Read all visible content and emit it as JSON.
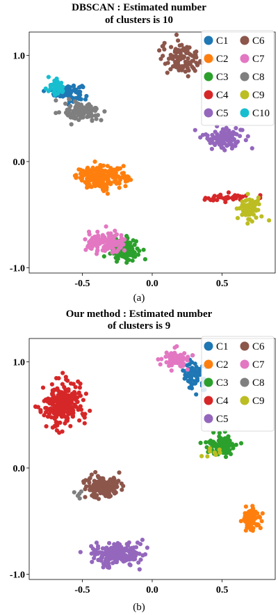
{
  "figure": {
    "caption_a": "(a)",
    "caption_b": "(b)"
  },
  "chart_data": [
    {
      "type": "scatter",
      "title": "DBSCAN : Estimated number",
      "subtitle": "of clusters is 10",
      "xlabel": "",
      "ylabel": "",
      "xlim": [
        -0.88,
        0.88
      ],
      "ylim": [
        -1.05,
        1.22
      ],
      "xticks": [
        "-0.5",
        "0.0",
        "0.5"
      ],
      "xtick_values": [
        -0.5,
        0.0,
        0.5
      ],
      "yticks": [
        "1.0",
        "0.0",
        "-1.0"
      ],
      "ytick_values": [
        1.0,
        0.0,
        -1.0
      ],
      "grid": false,
      "legend": "top-right",
      "series": [
        {
          "name": "C1",
          "color": "#1f77b4",
          "center": [
            -0.6,
            0.65
          ],
          "spread": [
            0.05,
            0.04
          ],
          "count": 90
        },
        {
          "name": "C2",
          "color": "#ff7f0e",
          "center": [
            -0.36,
            -0.15
          ],
          "spread": [
            0.09,
            0.05
          ],
          "count": 200
        },
        {
          "name": "C3",
          "color": "#2ca02c",
          "center": [
            -0.2,
            -0.83
          ],
          "spread": [
            0.05,
            0.05
          ],
          "count": 140
        },
        {
          "name": "C4",
          "color": "#d62728",
          "center": [
            0.53,
            -0.34
          ],
          "spread": [
            0.09,
            0.02
          ],
          "count": 35
        },
        {
          "name": "C5",
          "color": "#9467bd",
          "center": [
            0.51,
            0.23
          ],
          "spread": [
            0.07,
            0.05
          ],
          "count": 110
        },
        {
          "name": "C6",
          "color": "#8c564b",
          "center": [
            0.22,
            0.97
          ],
          "spread": [
            0.08,
            0.08
          ],
          "count": 110
        },
        {
          "name": "C7",
          "color": "#e377c2",
          "center": [
            -0.33,
            -0.77
          ],
          "spread": [
            0.07,
            0.05
          ],
          "count": 120
        },
        {
          "name": "C8",
          "color": "#7f7f7f",
          "center": [
            -0.5,
            0.47
          ],
          "spread": [
            0.06,
            0.04
          ],
          "count": 110
        },
        {
          "name": "C9",
          "color": "#bcbd22",
          "center": [
            0.7,
            -0.45
          ],
          "spread": [
            0.04,
            0.06
          ],
          "count": 70
        },
        {
          "name": "C10",
          "color": "#17becf",
          "center": [
            -0.69,
            0.7
          ],
          "spread": [
            0.03,
            0.04
          ],
          "count": 35
        }
      ]
    },
    {
      "type": "scatter",
      "title": "Our method : Estimated number",
      "subtitle": "of clusters is 9",
      "xlabel": "",
      "ylabel": "",
      "xlim": [
        -0.88,
        0.88
      ],
      "ylim": [
        -1.05,
        1.22
      ],
      "xticks": [
        "-0.5",
        "0.0",
        "0.5"
      ],
      "xtick_values": [
        -0.5,
        0.0,
        0.5
      ],
      "yticks": [
        "1.0",
        "0.0",
        "-1.0"
      ],
      "ytick_values": [
        1.0,
        0.0,
        -1.0
      ],
      "grid": false,
      "legend": "top-right",
      "series": [
        {
          "name": "C1",
          "color": "#1f77b4",
          "center": [
            0.3,
            0.88
          ],
          "spread": [
            0.04,
            0.07
          ],
          "count": 70
        },
        {
          "name": "C2",
          "color": "#ff7f0e",
          "center": [
            0.71,
            -0.48
          ],
          "spread": [
            0.03,
            0.05
          ],
          "count": 90
        },
        {
          "name": "C3",
          "color": "#2ca02c",
          "center": [
            0.5,
            0.22
          ],
          "spread": [
            0.05,
            0.05
          ],
          "count": 100
        },
        {
          "name": "C4",
          "color": "#d62728",
          "center": [
            -0.64,
            0.6
          ],
          "spread": [
            0.07,
            0.1
          ],
          "count": 250
        },
        {
          "name": "C5",
          "color": "#9467bd",
          "center": [
            -0.25,
            -0.81
          ],
          "spread": [
            0.09,
            0.05
          ],
          "count": 200
        },
        {
          "name": "C6",
          "color": "#8c564b",
          "center": [
            -0.37,
            -0.17
          ],
          "spread": [
            0.06,
            0.05
          ],
          "count": 150
        },
        {
          "name": "C7",
          "color": "#e377c2",
          "center": [
            0.17,
            1.03
          ],
          "spread": [
            0.05,
            0.04
          ],
          "count": 60
        },
        {
          "name": "C8",
          "color": "#7f7f7f",
          "center": [
            -0.53,
            -0.24
          ],
          "spread": [
            0.02,
            0.02
          ],
          "count": 5
        },
        {
          "name": "C9",
          "color": "#bcbd22",
          "center": [
            0.42,
            0.13
          ],
          "spread": [
            0.04,
            0.04
          ],
          "count": 8
        }
      ]
    }
  ]
}
